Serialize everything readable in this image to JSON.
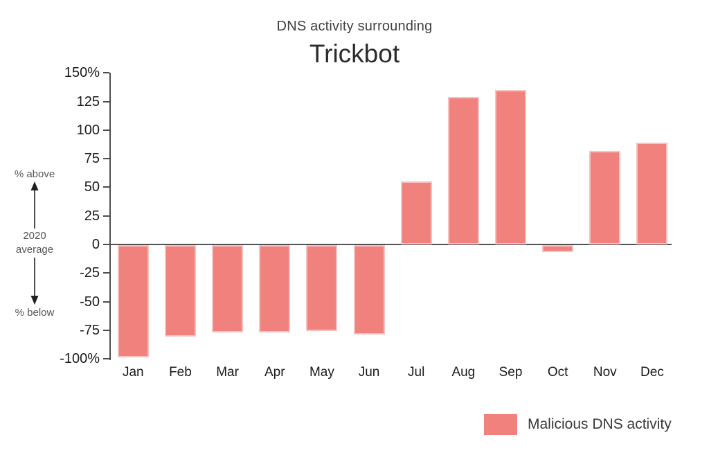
{
  "header": {
    "subtitle": "DNS activity surrounding",
    "title": "Trickbot"
  },
  "y_axis_annotation": {
    "above_label": "% above",
    "center_label_line1": "2020",
    "center_label_line2": "average",
    "below_label": "% below"
  },
  "legend": {
    "label": "Malicious DNS activity"
  },
  "colors": {
    "bar_fill": "#F0817C",
    "bar_border": "#F6C1BE",
    "axis_line": "#4D4D4F",
    "zero_line": "#515153",
    "tick_label": "#1A1A1A",
    "month_label": "#1A1A1A",
    "subtitle_text": "#404042",
    "title_text": "#2B2B2B",
    "annotation_text": "#565658",
    "legend_text": "#39393B",
    "arrow": "#231F20"
  },
  "chart_data": {
    "type": "bar",
    "title": "DNS activity surrounding Trickbot",
    "series_name": "Malicious DNS activity",
    "categories": [
      "Jan",
      "Feb",
      "Mar",
      "Apr",
      "May",
      "Jun",
      "Jul",
      "Aug",
      "Sep",
      "Oct",
      "Nov",
      "Dec"
    ],
    "values": [
      -98,
      -80,
      -76,
      -76,
      -75,
      -78,
      55,
      129,
      135,
      -6,
      82,
      89
    ],
    "unit": "percent relative to 2020 average",
    "xlabel": "",
    "ylabel": "% above / below 2020 average",
    "ylim": [
      -100,
      150
    ],
    "yticks": [
      150,
      125,
      100,
      75,
      50,
      25,
      0,
      -25,
      -50,
      -75,
      -100
    ],
    "ytick_labels": [
      "150%",
      "125",
      "100",
      "75",
      "50",
      "25",
      "0",
      "-25",
      "-50",
      "-75",
      "-100%"
    ],
    "grid": false,
    "legend_position": "bottom-right"
  }
}
